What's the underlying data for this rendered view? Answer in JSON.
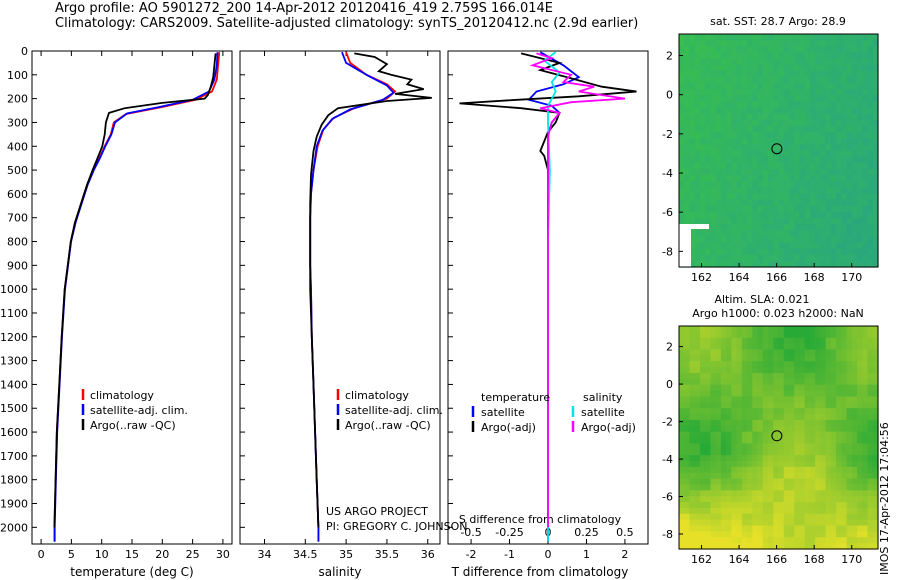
{
  "header": {
    "line1": "Argo profile: AO 5901272_200 14-Apr-2012 20120416_419 2.759S 166.014E",
    "line2": "Climatology: CARS2009. Satellite-adjusted climatology: synTS_20120412.nc (2.9d earlier)"
  },
  "colors": {
    "climatology": "#ff0000",
    "satellite": "#0000ff",
    "argo": "#000000",
    "salinity_sat": "#00e5e5",
    "salinity_argo": "#ff00ff"
  },
  "chart_data": [
    {
      "type": "line",
      "id": "temperature",
      "xlabel": "temperature (deg C)",
      "ylabel": "",
      "xlim": [
        -1.5,
        31.5
      ],
      "ylim": [
        2070,
        0
      ],
      "xticks": [
        "0",
        "5",
        "10",
        "15",
        "20",
        "25",
        "30"
      ],
      "xtick_values": [
        0,
        5,
        10,
        15,
        20,
        25,
        30
      ],
      "yticks": [
        "0",
        "100",
        "200",
        "300",
        "400",
        "500",
        "600",
        "700",
        "800",
        "900",
        "1000",
        "1100",
        "1200",
        "1300",
        "1400",
        "1500",
        "1600",
        "1700",
        "1800",
        "1900",
        "2000"
      ],
      "ytick_values": [
        0,
        100,
        200,
        300,
        400,
        500,
        600,
        700,
        800,
        900,
        1000,
        1100,
        1200,
        1300,
        1400,
        1500,
        1600,
        1700,
        1800,
        1900,
        2000
      ],
      "legend": [
        "climatology",
        "satellite-adj. clim.",
        "Argo(..raw -QC)"
      ],
      "series": [
        {
          "name": "climatology",
          "color_key": "climatology",
          "points": [
            [
              29.4,
              5
            ],
            [
              29.2,
              60
            ],
            [
              29.0,
              120
            ],
            [
              28.2,
              170
            ],
            [
              25.5,
              205
            ],
            [
              20,
              235
            ],
            [
              14,
              265
            ],
            [
              12,
              300
            ],
            [
              11.5,
              350
            ],
            [
              10.5,
              400
            ],
            [
              9.6,
              450
            ],
            [
              8.6,
              500
            ],
            [
              7.6,
              560
            ],
            [
              6.6,
              640
            ],
            [
              5.6,
              720
            ],
            [
              4.9,
              800
            ],
            [
              4.4,
              900
            ],
            [
              3.9,
              1000
            ],
            [
              3.4,
              1200
            ],
            [
              3.0,
              1400
            ],
            [
              2.6,
              1600
            ],
            [
              2.4,
              1800
            ],
            [
              2.2,
              2000
            ],
            [
              2.2,
              2060
            ]
          ]
        },
        {
          "name": "satellite-adj. clim.",
          "color_key": "satellite",
          "points": [
            [
              29.1,
              5
            ],
            [
              29.0,
              60
            ],
            [
              28.6,
              120
            ],
            [
              27.7,
              170
            ],
            [
              25.0,
              205
            ],
            [
              19.5,
              235
            ],
            [
              14.2,
              262
            ],
            [
              12.2,
              300
            ],
            [
              11.6,
              350
            ],
            [
              10.6,
              400
            ],
            [
              9.7,
              450
            ],
            [
              8.7,
              500
            ],
            [
              7.7,
              560
            ],
            [
              6.7,
              640
            ],
            [
              5.7,
              720
            ],
            [
              4.95,
              800
            ],
            [
              4.45,
              900
            ],
            [
              3.95,
              1000
            ],
            [
              3.45,
              1200
            ],
            [
              3.05,
              1400
            ],
            [
              2.65,
              1600
            ],
            [
              2.45,
              1800
            ],
            [
              2.25,
              2000
            ],
            [
              2.25,
              2060
            ]
          ]
        },
        {
          "name": "Argo(..raw -QC)",
          "color_key": "argo",
          "points": [
            [
              28.8,
              10
            ],
            [
              28.6,
              60
            ],
            [
              28.4,
              110
            ],
            [
              28.0,
              150
            ],
            [
              27.5,
              185
            ],
            [
              27.0,
              200
            ],
            [
              20,
              218
            ],
            [
              13.8,
              240
            ],
            [
              11.2,
              260
            ],
            [
              10.7,
              300
            ],
            [
              10.5,
              350
            ],
            [
              10.1,
              400
            ],
            [
              9.3,
              450
            ],
            [
              8.5,
              500
            ],
            [
              7.6,
              560
            ],
            [
              6.6,
              640
            ],
            [
              5.6,
              720
            ],
            [
              4.9,
              800
            ],
            [
              4.4,
              900
            ],
            [
              3.9,
              1000
            ],
            [
              3.4,
              1200
            ],
            [
              3.0,
              1400
            ],
            [
              2.6,
              1600
            ],
            [
              2.4,
              1800
            ],
            [
              2.2,
              2000
            ]
          ]
        }
      ]
    },
    {
      "type": "line",
      "id": "salinity",
      "xlabel": "salinity",
      "xlim": [
        33.7,
        36.15
      ],
      "ylim": [
        2070,
        0
      ],
      "xticks": [
        "34",
        "34.5",
        "35",
        "35.5",
        "36"
      ],
      "xtick_values": [
        34,
        34.5,
        35,
        35.5,
        36
      ],
      "legend": [
        "climatology",
        "satellite-adj. clim.",
        "Argo(..raw -QC)"
      ],
      "annotation": [
        "US ARGO PROJECT",
        "PI: GREGORY C. JOHNSON"
      ],
      "series": [
        {
          "name": "climatology",
          "color_key": "climatology",
          "points": [
            [
              35.0,
              5
            ],
            [
              35.05,
              50
            ],
            [
              35.25,
              100
            ],
            [
              35.5,
              140
            ],
            [
              35.6,
              170
            ],
            [
              35.5,
              200
            ],
            [
              35.1,
              240
            ],
            [
              34.85,
              280
            ],
            [
              34.72,
              330
            ],
            [
              34.65,
              400
            ],
            [
              34.6,
              500
            ],
            [
              34.57,
              600
            ],
            [
              34.56,
              700
            ],
            [
              34.56,
              800
            ],
            [
              34.56,
              900
            ],
            [
              34.57,
              1000
            ],
            [
              34.58,
              1200
            ],
            [
              34.6,
              1400
            ],
            [
              34.62,
              1600
            ],
            [
              34.64,
              1800
            ],
            [
              34.66,
              2000
            ],
            [
              34.66,
              2060
            ]
          ]
        },
        {
          "name": "satellite-adj. clim.",
          "color_key": "satellite",
          "points": [
            [
              34.95,
              5
            ],
            [
              35.0,
              50
            ],
            [
              35.25,
              100
            ],
            [
              35.5,
              145
            ],
            [
              35.58,
              175
            ],
            [
              35.45,
              205
            ],
            [
              35.05,
              245
            ],
            [
              34.83,
              285
            ],
            [
              34.71,
              335
            ],
            [
              34.64,
              400
            ],
            [
              34.6,
              500
            ],
            [
              34.57,
              600
            ],
            [
              34.56,
              700
            ],
            [
              34.56,
              800
            ],
            [
              34.56,
              900
            ],
            [
              34.57,
              1000
            ],
            [
              34.58,
              1200
            ],
            [
              34.6,
              1400
            ],
            [
              34.62,
              1600
            ],
            [
              34.64,
              1800
            ],
            [
              34.66,
              2000
            ],
            [
              34.66,
              2060
            ]
          ]
        },
        {
          "name": "Argo(..raw -QC)",
          "color_key": "argo",
          "points": [
            [
              35.1,
              10
            ],
            [
              35.35,
              25
            ],
            [
              35.5,
              55
            ],
            [
              35.4,
              85
            ],
            [
              35.55,
              100
            ],
            [
              35.8,
              120
            ],
            [
              35.75,
              140
            ],
            [
              35.95,
              160
            ],
            [
              35.6,
              180
            ],
            [
              36.05,
              197
            ],
            [
              35.5,
              210
            ],
            [
              34.9,
              240
            ],
            [
              34.78,
              270
            ],
            [
              34.7,
              310
            ],
            [
              34.64,
              360
            ],
            [
              34.6,
              420
            ],
            [
              34.57,
              520
            ],
            [
              34.56,
              640
            ],
            [
              34.56,
              800
            ],
            [
              34.56,
              1000
            ],
            [
              34.58,
              1200
            ],
            [
              34.6,
              1400
            ],
            [
              34.62,
              1600
            ],
            [
              34.64,
              1800
            ],
            [
              34.66,
              2000
            ]
          ]
        }
      ]
    },
    {
      "type": "line",
      "id": "difference",
      "xlabel": "T difference from climatology",
      "xlabel_top": "S difference from climatology",
      "xlim": [
        -2.6,
        2.6
      ],
      "ylim": [
        2070,
        0
      ],
      "xticks": [
        "-2",
        "-1",
        "0",
        "1",
        "2"
      ],
      "xtick_values": [
        -2,
        -1,
        0,
        1,
        2
      ],
      "s_ticks": [
        "-0.5",
        "-0.25",
        "0",
        "0.25",
        "0.5"
      ],
      "s_tick_values": [
        -0.5,
        -0.25,
        0,
        0.25,
        0.5
      ],
      "s_scale": 4,
      "legend": [
        "temperature",
        "satellite",
        "Argo(-adj)",
        "salinity",
        "satellite",
        "Argo(-adj)"
      ],
      "series": [
        {
          "name": "T satellite",
          "color_key": "satellite",
          "points": [
            [
              -0.2,
              5
            ],
            [
              0.4,
              60
            ],
            [
              0.8,
              110
            ],
            [
              0.4,
              140
            ],
            [
              -0.3,
              170
            ],
            [
              -0.5,
              205
            ],
            [
              0.1,
              230
            ],
            [
              0.3,
              260
            ],
            [
              0.1,
              300
            ],
            [
              0,
              350
            ],
            [
              0,
              500
            ],
            [
              0,
              800
            ],
            [
              0,
              1200
            ],
            [
              0,
              1600
            ],
            [
              0,
              2060
            ]
          ]
        },
        {
          "name": "T Argo(-adj)",
          "color_key": "argo",
          "points": [
            [
              -0.7,
              10
            ],
            [
              0.3,
              50
            ],
            [
              -0.2,
              80
            ],
            [
              0.5,
              110
            ],
            [
              1.4,
              150
            ],
            [
              2.3,
              170
            ],
            [
              0.8,
              190
            ],
            [
              -0.8,
              205
            ],
            [
              -2.3,
              220
            ],
            [
              -0.7,
              240
            ],
            [
              0.3,
              260
            ],
            [
              0.2,
              300
            ],
            [
              0,
              340
            ],
            [
              -0.2,
              420
            ],
            [
              -0.1,
              440
            ],
            [
              0,
              500
            ],
            [
              0,
              800
            ],
            [
              0,
              1200
            ],
            [
              0,
              1600
            ],
            [
              0,
              2000
            ]
          ]
        },
        {
          "name": "S satellite",
          "color_key": "salinity_sat",
          "points": [
            [
              0.2,
              5
            ],
            [
              -0.1,
              40
            ],
            [
              0.3,
              90
            ],
            [
              0.1,
              130
            ],
            [
              0.2,
              170
            ],
            [
              0,
              230
            ],
            [
              0,
              300
            ],
            [
              0.05,
              500
            ],
            [
              0,
              800
            ],
            [
              0,
              1200
            ],
            [
              0,
              1600
            ],
            [
              0,
              2060
            ]
          ]
        },
        {
          "name": "S Argo(-adj)",
          "color_key": "salinity_argo",
          "points": [
            [
              -0.3,
              10
            ],
            [
              0.1,
              30
            ],
            [
              -0.4,
              60
            ],
            [
              0.6,
              100
            ],
            [
              0.4,
              130
            ],
            [
              1.2,
              150
            ],
            [
              0.8,
              170
            ],
            [
              2.0,
              200
            ],
            [
              0.6,
              215
            ],
            [
              -0.2,
              240
            ],
            [
              0.3,
              260
            ],
            [
              0.1,
              300
            ],
            [
              0,
              360
            ],
            [
              0,
              500
            ],
            [
              0,
              800
            ],
            [
              0,
              1200
            ],
            [
              0,
              1600
            ],
            [
              0,
              2000
            ]
          ]
        }
      ]
    },
    {
      "type": "heatmap",
      "id": "sst_map",
      "title": "sat. SST: 28.7  Argo: 28.9",
      "xlim": [
        160.8,
        171.4
      ],
      "ylim": [
        -8.8,
        3.1
      ],
      "xticks": [
        "162",
        "164",
        "166",
        "168",
        "170"
      ],
      "xtick_values": [
        162,
        164,
        166,
        168,
        170
      ],
      "yticks": [
        "2",
        "0",
        "-2",
        "-4",
        "-6",
        "-8"
      ],
      "ytick_values": [
        2,
        0,
        -2,
        -4,
        -6,
        -8
      ],
      "marker": {
        "lon": 166.014,
        "lat": -2.759
      }
    },
    {
      "type": "heatmap",
      "id": "sla_map",
      "title_line1": "Altim. SLA: 0.021",
      "title_line2": "Argo h1000: 0.023  h2000: NaN",
      "xlim": [
        160.8,
        171.4
      ],
      "ylim": [
        -8.8,
        3.1
      ],
      "xticks": [
        "162",
        "164",
        "166",
        "168",
        "170"
      ],
      "xtick_values": [
        162,
        164,
        166,
        168,
        170
      ],
      "yticks": [
        "2",
        "0",
        "-2",
        "-4",
        "-6",
        "-8"
      ],
      "ytick_values": [
        2,
        0,
        -2,
        -4,
        -6,
        -8
      ],
      "marker": {
        "lon": 166.014,
        "lat": -2.759
      }
    }
  ],
  "stamp": "IMOS 17-Apr-2012 17:04:56"
}
